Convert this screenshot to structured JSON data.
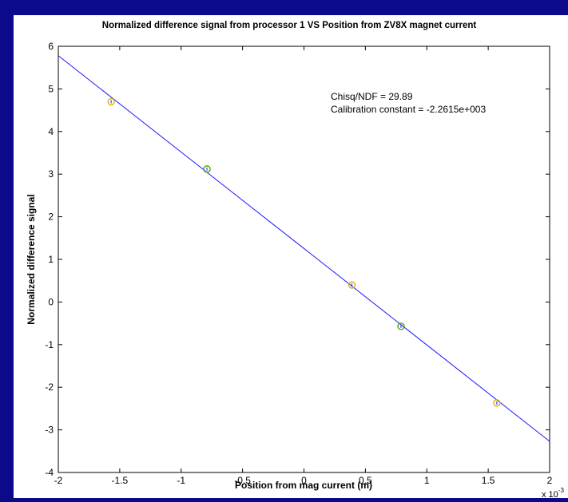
{
  "chart_data": {
    "type": "scatter",
    "title": "Normalized difference signal from processor 1 VS Position from ZV8X magnet current",
    "xlabel": "Position from mag current (m)",
    "ylabel": "Normalized difference signal",
    "x_multiplier_base": "x 10",
    "x_multiplier_exp": "-3",
    "xlim": [
      -2,
      2
    ],
    "ylim": [
      -4,
      6
    ],
    "xticks": [
      -2,
      -1.5,
      -1,
      -0.5,
      0,
      0.5,
      1,
      1.5,
      2
    ],
    "xtick_labels": [
      "-2",
      "-1.5",
      "-1",
      "-0.5",
      "0",
      "0.5",
      "1",
      "1.5",
      "2"
    ],
    "yticks": [
      -4,
      -3,
      -2,
      -1,
      0,
      1,
      2,
      3,
      4,
      5,
      6
    ],
    "ytick_labels": [
      "-4",
      "-3",
      "-2",
      "-1",
      "0",
      "1",
      "2",
      "3",
      "4",
      "5",
      "6"
    ],
    "points": [
      {
        "x": -1.57,
        "y": 4.7,
        "color": "#d6b000"
      },
      {
        "x": -0.79,
        "y": 3.12,
        "color": "#3aa000"
      },
      {
        "x": 0.39,
        "y": 0.4,
        "color": "#d6b000"
      },
      {
        "x": 0.79,
        "y": -0.57,
        "color": "#3aa000"
      },
      {
        "x": 1.57,
        "y": -2.37,
        "color": "#d6b000"
      }
    ],
    "fit_line": {
      "x": [
        -2,
        2
      ],
      "y": [
        5.78,
        -3.27
      ],
      "color": "#1a1aff"
    },
    "annotations": [
      "Chisq/NDF = 29.89",
      "Calibration constant = -2.2615e+003"
    ],
    "grid": false,
    "legend": "none"
  }
}
